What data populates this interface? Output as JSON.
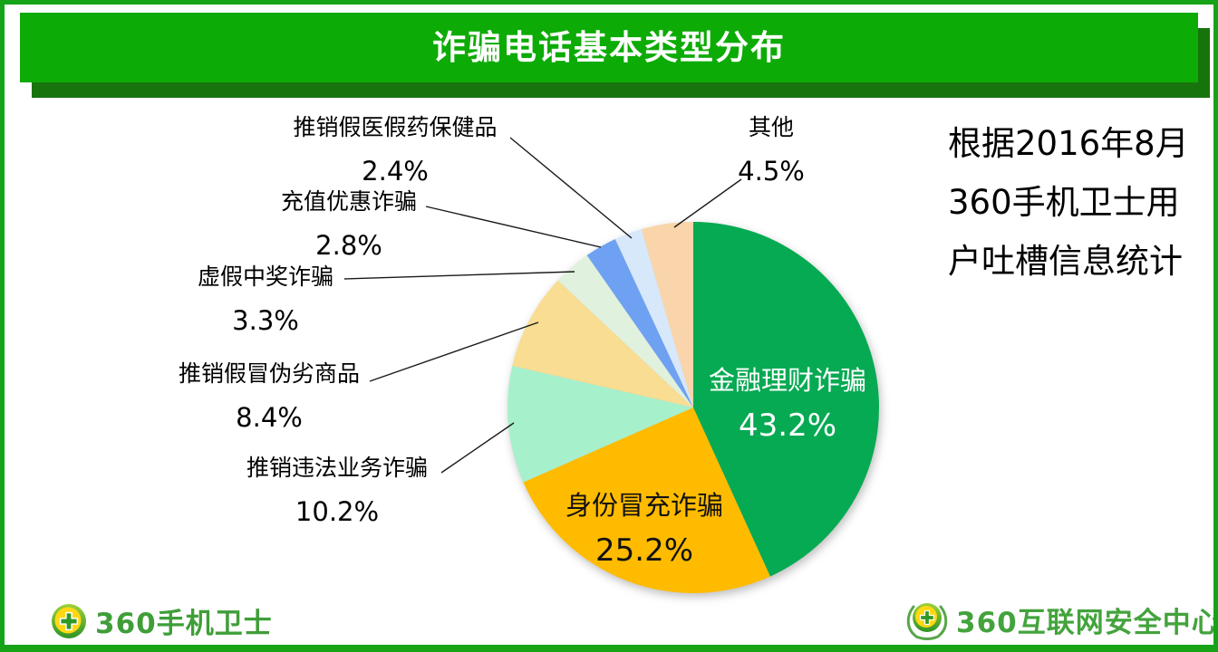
{
  "header": {
    "title": "诈骗电话基本类型分布"
  },
  "note": {
    "line1": "根据2016年8月",
    "line2": "360手机卫士用",
    "line3": "户吐槽信息统计"
  },
  "chart_data": {
    "type": "pie",
    "title": "诈骗电话基本类型分布",
    "unit": "%",
    "total": 100,
    "start_angle_deg": 0,
    "direction": "clockwise",
    "legend": "none (direct labels with leader lines)",
    "source_note": "根据2016年8月360手机卫士用户吐槽信息统计",
    "segments": [
      {
        "label": "金融理财诈骗",
        "value": 43.2,
        "pct_text": "43.2%",
        "color": "#06AA52",
        "label_placement": "inside"
      },
      {
        "label": "身份冒充诈骗",
        "value": 25.2,
        "pct_text": "25.2%",
        "color": "#FFBB00",
        "label_placement": "inside"
      },
      {
        "label": "推销违法业务诈骗",
        "value": 10.2,
        "pct_text": "10.2%",
        "color": "#A7F0CC",
        "label_placement": "outside-left"
      },
      {
        "label": "推销假冒伪劣商品",
        "value": 8.4,
        "pct_text": "8.4%",
        "color": "#F8DD92",
        "label_placement": "outside-left"
      },
      {
        "label": "虚假中奖诈骗",
        "value": 3.3,
        "pct_text": "3.3%",
        "color": "#E0F1DD",
        "label_placement": "outside-left"
      },
      {
        "label": "充值优惠诈骗",
        "value": 2.8,
        "pct_text": "2.8%",
        "color": "#6FA1F2",
        "label_placement": "outside-left"
      },
      {
        "label": "推销假医假药保健品",
        "value": 2.4,
        "pct_text": "2.4%",
        "color": "#D7E8FA",
        "label_placement": "outside-left"
      },
      {
        "label": "其他",
        "value": 4.5,
        "pct_text": "4.5%",
        "color": "#FAD5AB",
        "label_placement": "outside-right"
      }
    ]
  },
  "footer": {
    "left_logo_text": "360手机卫士",
    "right_logo_text": "360互联网安全中心"
  },
  "colors": {
    "banner_green": "#0DAB06",
    "banner_shadow_green": "#17740D",
    "frame_green": "#17A317",
    "logo_text_green": "#43A33C",
    "title_text": "#FFFFFF",
    "body_text": "#000000"
  }
}
